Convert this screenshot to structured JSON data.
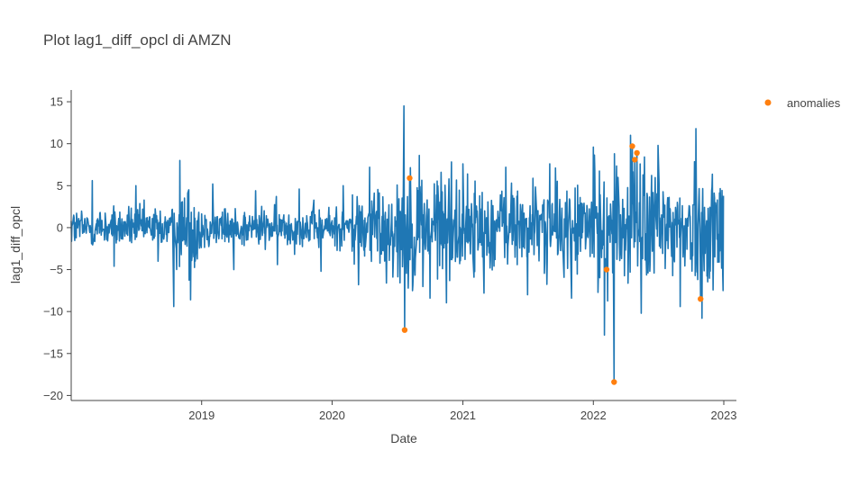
{
  "chart_data": {
    "type": "line",
    "title": "Plot lag1_diff_opcl di AMZN",
    "xlabel": "Date",
    "ylabel": "lag1_diff_opcl",
    "x_range": [
      "2018-01-01",
      "2023-01-01"
    ],
    "ylim": [
      -20.6,
      16.4
    ],
    "x_ticks": [
      "2019",
      "2020",
      "2021",
      "2022",
      "2023"
    ],
    "x_tick_dates": [
      "2019-01-01",
      "2020-01-01",
      "2021-01-01",
      "2022-01-01",
      "2023-01-01"
    ],
    "y_ticks": [
      15,
      10,
      5,
      0,
      -5,
      -10,
      -15,
      -20
    ],
    "y_tick_labels": [
      "15",
      "10",
      "5",
      "0",
      "−5",
      "−10",
      "−15",
      "−20"
    ],
    "grid": false,
    "legend": {
      "position": "top-right",
      "entries": [
        "anomalies"
      ]
    },
    "colors": {
      "line": "#1f77b4",
      "anomalies": "#ff7f0e",
      "axis": "#444444"
    },
    "series": [
      {
        "type": "line",
        "x": [
          "2018-01-01",
          "2018-03-01",
          "2018-05-01",
          "2018-07-01",
          "2018-09-01",
          "2018-10-15",
          "2018-11-01",
          "2018-12-01",
          "2019-02-01",
          "2019-04-01",
          "2019-06-01",
          "2019-08-01",
          "2019-10-01",
          "2019-12-01",
          "2020-02-01",
          "2020-03-15",
          "2020-04-15",
          "2020-06-01",
          "2020-07-20",
          "2020-08-01",
          "2020-09-01",
          "2020-10-01",
          "2020-11-01",
          "2021-01-01",
          "2021-03-01",
          "2021-05-01",
          "2021-07-01",
          "2021-09-01",
          "2021-11-01",
          "2022-01-01",
          "2022-02-01",
          "2022-03-01",
          "2022-04-15",
          "2022-05-15",
          "2022-07-01",
          "2022-09-01",
          "2022-10-15",
          "2022-11-01",
          "2022-12-31"
        ],
        "y": [
          0.8,
          5.6,
          -4.6,
          5.0,
          -4.0,
          -9.4,
          8.0,
          -8.6,
          5.2,
          -5.0,
          4.4,
          -4.4,
          4.6,
          -5.2,
          5.0,
          -6.8,
          7.2,
          -6.6,
          14.5,
          -7.2,
          8.6,
          -8.4,
          6.6,
          7.6,
          -7.8,
          7.2,
          -8.0,
          7.6,
          -8.4,
          9.6,
          -12.8,
          8.8,
          11.0,
          -10.2,
          9.8,
          -9.4,
          11.8,
          -10.8,
          3.8
        ]
      }
    ],
    "anomalies": {
      "name": "anomalies",
      "x": [
        "2020-07-22",
        "2020-08-05",
        "2022-02-07",
        "2022-02-28",
        "2022-04-20",
        "2022-04-27",
        "2022-05-03",
        "2022-10-28"
      ],
      "y": [
        -12.2,
        5.9,
        -5.0,
        -18.4,
        9.7,
        8.1,
        8.9,
        -8.5
      ]
    }
  }
}
